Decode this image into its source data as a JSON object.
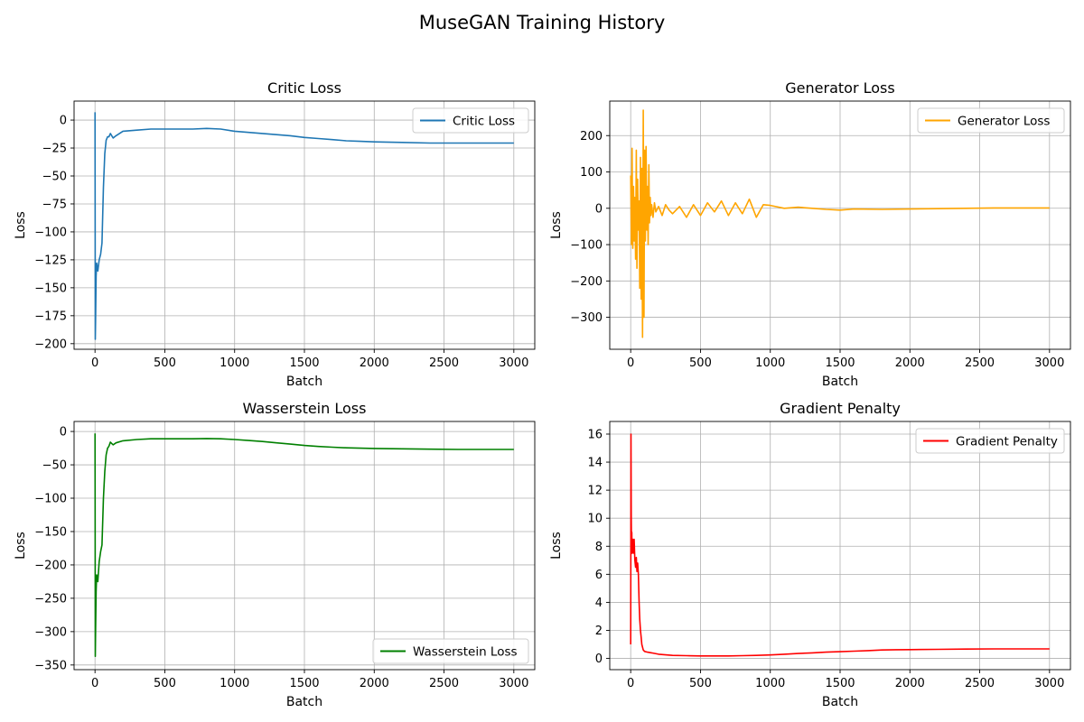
{
  "figure_title": "MuseGAN Training History",
  "chart_data": [
    {
      "type": "line",
      "title": "Critic Loss",
      "xlabel": "Batch",
      "ylabel": "Loss",
      "color": "#1f77b4",
      "legend": "top-right",
      "grid": true,
      "xlim": [
        -150,
        3150
      ],
      "ylim": [
        -205,
        17
      ],
      "xticks": [
        0,
        500,
        1000,
        1500,
        2000,
        2500,
        3000
      ],
      "yticks": [
        0,
        -25,
        -50,
        -75,
        -100,
        -125,
        -150,
        -175,
        -200
      ],
      "series": [
        {
          "name": "Critic Loss",
          "x": [
            0,
            1,
            2,
            4,
            8,
            12,
            20,
            30,
            40,
            50,
            60,
            70,
            80,
            90,
            100,
            110,
            120,
            130,
            150,
            200,
            300,
            400,
            500,
            600,
            700,
            800,
            900,
            1000,
            1100,
            1200,
            1300,
            1400,
            1500,
            1600,
            1700,
            1800,
            1900,
            2000,
            2200,
            2400,
            2600,
            2800,
            3000
          ],
          "y": [
            7,
            -60,
            -196,
            -180,
            -140,
            -128,
            -135,
            -125,
            -120,
            -110,
            -60,
            -30,
            -18,
            -15,
            -15,
            -12,
            -14,
            -16,
            -14,
            -10,
            -9,
            -8,
            -8,
            -8,
            -8,
            -7.5,
            -8,
            -10,
            -11,
            -12,
            -13,
            -14,
            -15.5,
            -16.5,
            -17.5,
            -18.5,
            -19,
            -19.5,
            -20,
            -20.5,
            -20.5,
            -20.5,
            -20.5
          ]
        }
      ]
    },
    {
      "type": "line",
      "title": "Generator Loss",
      "xlabel": "Batch",
      "ylabel": "Loss",
      "color": "#ffa500",
      "legend": "top-right",
      "grid": true,
      "xlim": [
        -150,
        3150
      ],
      "ylim": [
        -388,
        295
      ],
      "xticks": [
        0,
        500,
        1000,
        1500,
        2000,
        2500,
        3000
      ],
      "yticks": [
        200,
        100,
        0,
        -100,
        -200,
        -300
      ],
      "series": [
        {
          "name": "Generator Loss",
          "x": [
            0,
            5,
            10,
            15,
            20,
            25,
            30,
            35,
            40,
            45,
            50,
            55,
            60,
            65,
            70,
            75,
            80,
            85,
            90,
            95,
            100,
            105,
            110,
            115,
            120,
            125,
            130,
            135,
            140,
            145,
            150,
            160,
            170,
            180,
            200,
            225,
            250,
            275,
            300,
            350,
            400,
            450,
            500,
            550,
            600,
            650,
            700,
            750,
            800,
            850,
            900,
            950,
            1000,
            1100,
            1200,
            1300,
            1400,
            1500,
            1600,
            1800,
            2000,
            2200,
            2400,
            2600,
            2800,
            3000
          ],
          "y": [
            90,
            -100,
            165,
            -110,
            60,
            -90,
            30,
            -140,
            160,
            -165,
            80,
            -60,
            20,
            -220,
            140,
            -250,
            110,
            -355,
            270,
            -300,
            160,
            -90,
            170,
            -60,
            60,
            -100,
            120,
            -40,
            30,
            -20,
            10,
            -25,
            15,
            -10,
            5,
            -20,
            10,
            -5,
            -15,
            5,
            -25,
            10,
            -20,
            15,
            -10,
            20,
            -20,
            15,
            -15,
            25,
            -25,
            10,
            8,
            0,
            3,
            0,
            -3,
            -5,
            -2,
            -3,
            -2,
            -1,
            0,
            1,
            1,
            1
          ]
        }
      ]
    },
    {
      "type": "line",
      "title": "Wasserstein Loss",
      "xlabel": "Batch",
      "ylabel": "Loss",
      "color": "#008000",
      "legend": "bottom-right",
      "grid": true,
      "xlim": [
        -150,
        3150
      ],
      "ylim": [
        -357,
        15
      ],
      "xticks": [
        0,
        500,
        1000,
        1500,
        2000,
        2500,
        3000
      ],
      "yticks": [
        0,
        -50,
        -100,
        -150,
        -200,
        -250,
        -300,
        -350
      ],
      "series": [
        {
          "name": "Wasserstein Loss",
          "x": [
            0,
            1,
            2,
            4,
            8,
            12,
            20,
            30,
            40,
            50,
            60,
            70,
            80,
            90,
            100,
            110,
            120,
            130,
            150,
            200,
            300,
            400,
            500,
            600,
            700,
            800,
            900,
            1000,
            1100,
            1200,
            1300,
            1400,
            1500,
            1600,
            1700,
            1800,
            1900,
            2000,
            2200,
            2400,
            2600,
            2800,
            3000
          ],
          "y": [
            -3,
            -100,
            -337,
            -300,
            -240,
            -215,
            -225,
            -195,
            -180,
            -170,
            -100,
            -60,
            -35,
            -25,
            -22,
            -16,
            -18,
            -20,
            -17,
            -14,
            -12,
            -11,
            -11,
            -11,
            -11,
            -10.5,
            -11,
            -12,
            -13.5,
            -15,
            -17,
            -19,
            -21,
            -22.5,
            -23.5,
            -24.5,
            -25,
            -25.5,
            -26,
            -26.5,
            -27,
            -27,
            -27
          ]
        }
      ]
    },
    {
      "type": "line",
      "title": "Gradient Penalty",
      "xlabel": "Batch",
      "ylabel": "Loss",
      "color": "#ff0000",
      "legend": "top-right",
      "grid": true,
      "xlim": [
        -150,
        3150
      ],
      "ylim": [
        -0.8,
        16.9
      ],
      "xticks": [
        0,
        500,
        1000,
        1500,
        2000,
        2500,
        3000
      ],
      "yticks": [
        0,
        2,
        4,
        6,
        8,
        10,
        12,
        14,
        16
      ],
      "series": [
        {
          "name": "Gradient Penalty",
          "x": [
            0,
            2,
            4,
            6,
            8,
            10,
            15,
            20,
            25,
            30,
            35,
            40,
            45,
            50,
            55,
            60,
            65,
            70,
            75,
            80,
            90,
            100,
            120,
            150,
            200,
            300,
            400,
            500,
            600,
            700,
            800,
            900,
            1000,
            1100,
            1200,
            1300,
            1400,
            1500,
            1600,
            1700,
            1800,
            1900,
            2000,
            2200,
            2400,
            2600,
            2800,
            3000
          ],
          "y": [
            1,
            16,
            10,
            8,
            9,
            7.5,
            8.5,
            7.5,
            8.5,
            7,
            6.5,
            7.2,
            6.2,
            6.8,
            6,
            4,
            2.8,
            2,
            1.5,
            1,
            0.6,
            0.5,
            0.45,
            0.4,
            0.3,
            0.22,
            0.2,
            0.18,
            0.18,
            0.18,
            0.2,
            0.22,
            0.25,
            0.3,
            0.35,
            0.4,
            0.45,
            0.48,
            0.52,
            0.56,
            0.6,
            0.62,
            0.63,
            0.65,
            0.67,
            0.68,
            0.68,
            0.68
          ]
        }
      ]
    }
  ]
}
